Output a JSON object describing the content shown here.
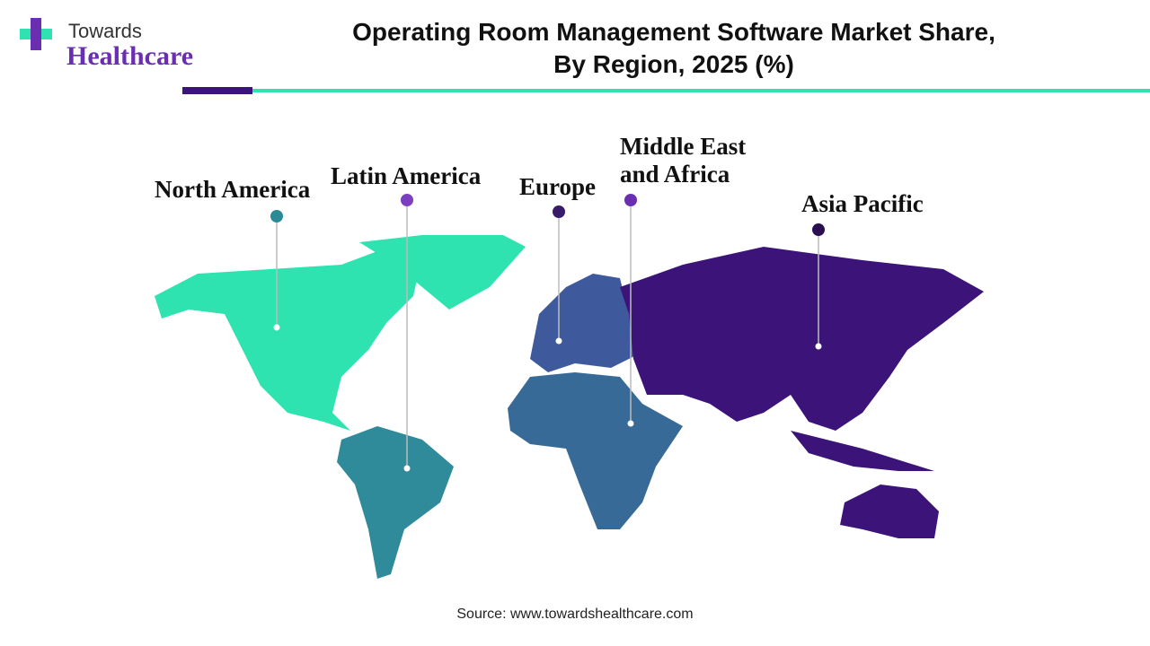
{
  "header": {
    "logo": {
      "top": "Towards",
      "bottom": "Healthcare"
    },
    "title": [
      "Operating Room Management Software Market Share,",
      "By Region, 2025 (%)"
    ]
  },
  "regions": [
    {
      "label": [
        "North America"
      ],
      "marker_color": "#2a8a96",
      "map_color": "#2ee3b0"
    },
    {
      "label": [
        "Latin America"
      ],
      "marker_color": "#7b3fbf",
      "map_color": "#2f8a9a"
    },
    {
      "label": [
        "Europe"
      ],
      "marker_color": "#3a1a6a",
      "map_color": "#3e5a9c"
    },
    {
      "label": [
        "Middle East",
        "and Africa"
      ],
      "marker_color": "#6a2fb0",
      "map_color": "#386a98"
    },
    {
      "label": [
        "Asia Pacific"
      ],
      "marker_color": "#2a1050",
      "map_color": "#3c1479"
    }
  ],
  "source": "Source: www.towardshealthcare.com"
}
